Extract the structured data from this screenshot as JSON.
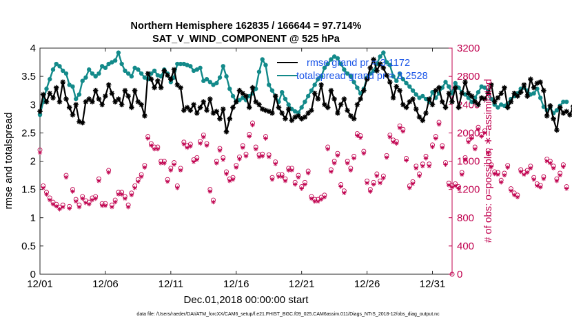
{
  "chart_data": {
    "type": "line",
    "title_line1": "Northern Hemisphere 162835 / 166644 = 97.714%",
    "title_line2": "SAT_V_WIND_COMPONENT @ 525 hPa",
    "xlabel": "Dec.01,2018 00:00:00 start",
    "ylabel_left": "rmse and totalspread",
    "ylabel_right": "# of obs: o=possible; ∗=assimilated",
    "footer": "data file: /Users/raeder/DAI/ATM_forcXX/CAM6_setup/f.e21.FHIST_BGC.f09_025.CAM6assim.011/Diags_NTrS_2018-12/obs_diag_output.nc",
    "xlim": [
      0,
      31.5
    ],
    "ylim_left": [
      0,
      4
    ],
    "ylim_right": [
      0,
      3200
    ],
    "x_ticks": [
      {
        "pos": 0,
        "label": "12/01"
      },
      {
        "pos": 5,
        "label": "12/06"
      },
      {
        "pos": 10,
        "label": "12/11"
      },
      {
        "pos": 15,
        "label": "12/16"
      },
      {
        "pos": 20,
        "label": "12/21"
      },
      {
        "pos": 25,
        "label": "12/26"
      },
      {
        "pos": 30,
        "label": "12/31"
      }
    ],
    "y_ticks_left": [
      "0",
      "0.5",
      "1",
      "1.5",
      "2",
      "2.5",
      "3",
      "3.5",
      "4"
    ],
    "y_ticks_right": [
      "0",
      "400",
      "800",
      "1200",
      "1600",
      "2000",
      "2400",
      "2800",
      "3200"
    ],
    "step_days": 0.25,
    "series": [
      {
        "name": "rmse grand pr = 3.1172",
        "color": "#000000",
        "axis": "left",
        "marker": "asterisk",
        "values": [
          2.88,
          3.18,
          3.05,
          3.2,
          3.12,
          3.3,
          3.05,
          3.4,
          3.1,
          2.95,
          2.82,
          3.0,
          2.7,
          2.68,
          3.05,
          3.1,
          3.05,
          3.25,
          3.1,
          3.0,
          3.15,
          3.35,
          3.2,
          3.05,
          3.1,
          3.0,
          3.25,
          3.15,
          2.95,
          3.25,
          3.05,
          3.0,
          2.8,
          3.55,
          3.45,
          3.3,
          3.42,
          3.3,
          3.6,
          3.52,
          3.45,
          3.62,
          3.35,
          3.3,
          2.9,
          2.95,
          2.9,
          3.0,
          2.85,
          2.95,
          3.05,
          2.9,
          3.1,
          2.85,
          2.88,
          2.75,
          2.92,
          2.52,
          2.75,
          2.95,
          3.05,
          3.25,
          3.2,
          3.15,
          2.95,
          3.3,
          3.05,
          3.0,
          2.92,
          2.9,
          2.88,
          2.85,
          3.15,
          2.95,
          2.85,
          2.75,
          2.92,
          2.72,
          2.78,
          2.8,
          2.75,
          2.78,
          2.85,
          2.9,
          3.2,
          3.1,
          3.35,
          3.0,
          2.95,
          3.25,
          3.1,
          2.85,
          3.0,
          3.1,
          2.9,
          2.8,
          2.75,
          3.0,
          3.1,
          3.25,
          3.45,
          3.65,
          3.8,
          3.6,
          3.72,
          3.65,
          3.52,
          3.4,
          3.12,
          3.32,
          3.25,
          3.0,
          2.95,
          3.05,
          3.1,
          2.92,
          2.78,
          2.72,
          2.85,
          3.1,
          3.0,
          3.25,
          3.3,
          3.05,
          2.95,
          3.2,
          3.05,
          3.3,
          2.95,
          3.2,
          3.4,
          3.2,
          3.15,
          3.05,
          3.0,
          3.12,
          3.1,
          3.2,
          3.35,
          3.05,
          3.12,
          3.2,
          3.3,
          2.95,
          3.05,
          3.2,
          3.15,
          3.22,
          3.35,
          3.15,
          3.45,
          3.3,
          3.38,
          3.4,
          3.25,
          2.8,
          2.98,
          2.75,
          2.55,
          2.95,
          2.85,
          2.88,
          2.82,
          2.96,
          3.05
        ]
      },
      {
        "name": "totalspread grand pr = 3.2528",
        "color": "#138a8a",
        "axis": "left",
        "marker": "dot",
        "values": [
          2.82,
          3.05,
          3.28,
          3.45,
          3.62,
          3.72,
          3.68,
          3.6,
          3.55,
          3.35,
          3.32,
          3.1,
          3.18,
          3.42,
          3.48,
          3.62,
          3.55,
          3.5,
          3.55,
          3.68,
          3.65,
          3.72,
          3.75,
          3.78,
          3.92,
          3.72,
          3.6,
          3.55,
          3.5,
          3.65,
          3.62,
          3.55,
          3.48,
          3.45,
          3.55,
          3.6,
          3.52,
          3.5,
          3.62,
          3.55,
          3.4,
          3.48,
          3.72,
          3.72,
          3.72,
          3.7,
          3.68,
          3.6,
          3.62,
          3.65,
          3.42,
          3.45,
          3.4,
          3.35,
          3.38,
          3.48,
          3.68,
          3.5,
          3.28,
          3.15,
          3.05,
          3.08,
          3.12,
          3.08,
          3.15,
          3.2,
          3.28,
          3.58,
          3.8,
          3.7,
          3.35,
          3.25,
          3.15,
          3.05,
          3.22,
          3.1,
          3.0,
          2.92,
          2.88,
          2.86,
          2.95,
          3.05,
          3.15,
          3.25,
          3.35,
          3.45,
          3.5,
          3.65,
          3.72,
          3.8,
          3.85,
          3.82,
          3.72,
          3.62,
          3.55,
          3.5,
          3.4,
          3.3,
          3.2,
          3.28,
          3.48,
          3.55,
          3.6,
          3.72,
          3.85,
          3.92,
          3.75,
          3.7,
          3.5,
          3.42,
          3.55,
          3.45,
          3.38,
          3.32,
          3.25,
          3.18,
          3.12,
          3.15,
          3.1,
          3.05,
          3.22,
          3.12,
          3.2,
          3.3,
          3.4,
          3.32,
          3.2,
          3.38,
          3.3,
          3.22,
          3.18,
          3.12,
          3.05,
          3.12,
          3.22,
          3.32,
          3.3,
          3.25,
          3.1,
          3.0,
          2.95,
          3.0,
          2.98,
          3.02,
          3.1,
          3.15,
          3.2,
          3.28,
          3.3,
          3.25,
          3.18,
          3.2,
          3.28,
          3.12,
          2.96,
          2.9,
          2.95,
          2.85,
          2.9,
          2.98,
          3.05,
          3.05
        ]
      },
      {
        "name": "observations possible",
        "color": "#c0004e",
        "axis": "right",
        "marker": "circle",
        "values": [
          1760,
          1250,
          1160,
          1080,
          1020,
          990,
          950,
          980,
          1400,
          960,
          1200,
          1060,
          980,
          1100,
          1040,
          1020,
          1080,
          1100,
          1350,
          1000,
          1000,
          1470,
          980,
          1050,
          1160,
          1160,
          1100,
          980,
          1150,
          1250,
          1340,
          1410,
          1540,
          1950,
          1850,
          1800,
          1800,
          1600,
          1600,
          1340,
          1500,
          1580,
          1250,
          1500,
          1870,
          1820,
          1840,
          1620,
          1650,
          1880,
          1970,
          1850,
          1200,
          1050,
          1600,
          1780,
          1650,
          1450,
          1350,
          1370,
          1540,
          1660,
          1820,
          1700,
          1980,
          2140,
          1800,
          1690,
          1700,
          1950,
          1690,
          1370,
          1590,
          1410,
          1410,
          1350,
          1500,
          1500,
          1300,
          1400,
          1240,
          1300,
          1460,
          1100,
          1060,
          1060,
          1090,
          1120,
          1800,
          1480,
          1600,
          1710,
          1270,
          1180,
          1600,
          1500,
          1670,
          1990,
          1960,
          1740,
          1320,
          1200,
          1300,
          1420,
          1320,
          1390,
          1680,
          1970,
          1900,
          1880,
          2100,
          2050,
          1640,
          1250,
          1310,
          1530,
          1420,
          1560,
          1670,
          1560,
          1830,
          1950,
          2150,
          1820,
          1580,
          1290,
          1260,
          1280,
          1240,
          1440,
          1650,
          1900,
          1950,
          1800,
          2080,
          1980,
          2030,
          1750,
          1550,
          1450,
          1440,
          1330,
          1430,
          1540,
          1210,
          1150,
          1120,
          1480,
          1440,
          1470,
          1530,
          1370,
          1280,
          1260,
          1380,
          1630,
          1600,
          1530,
          1350,
          1430,
          1550,
          1240
        ]
      },
      {
        "name": "observations assimilated",
        "color": "#c0004e",
        "axis": "right",
        "marker": "asterisk",
        "values": [
          1720,
          1220,
          1130,
          1050,
          990,
          960,
          920,
          950,
          1370,
          930,
          1170,
          1030,
          950,
          1070,
          1010,
          990,
          1050,
          1070,
          1320,
          970,
          970,
          1440,
          950,
          1020,
          1130,
          1130,
          1070,
          950,
          1120,
          1220,
          1310,
          1380,
          1510,
          1920,
          1820,
          1770,
          1770,
          1570,
          1570,
          1310,
          1470,
          1550,
          1220,
          1470,
          1840,
          1790,
          1810,
          1590,
          1620,
          1850,
          1940,
          1820,
          1170,
          1020,
          1570,
          1750,
          1620,
          1420,
          1320,
          1340,
          1510,
          1630,
          1790,
          1670,
          1950,
          2110,
          1770,
          1660,
          1670,
          1920,
          1660,
          1340,
          1560,
          1380,
          1380,
          1320,
          1470,
          1470,
          1270,
          1370,
          1210,
          1270,
          1430,
          1070,
          1030,
          1030,
          1060,
          1090,
          1770,
          1450,
          1570,
          1680,
          1240,
          1150,
          1570,
          1470,
          1640,
          1960,
          1930,
          1710,
          1290,
          1170,
          1270,
          1390,
          1290,
          1360,
          1650,
          1940,
          1870,
          1850,
          2070,
          2020,
          1610,
          1220,
          1280,
          1500,
          1390,
          1530,
          1640,
          1530,
          1800,
          1920,
          2120,
          1790,
          1550,
          1260,
          1230,
          1250,
          1210,
          1410,
          1620,
          1870,
          1920,
          1770,
          2050,
          1950,
          2000,
          1720,
          1520,
          1420,
          1410,
          1300,
          1400,
          1510,
          1180,
          1120,
          1090,
          1450,
          1410,
          1440,
          1500,
          1340,
          1250,
          1230,
          1350,
          1600,
          1570,
          1500,
          1320,
          1400,
          1520,
          1210
        ]
      }
    ]
  }
}
